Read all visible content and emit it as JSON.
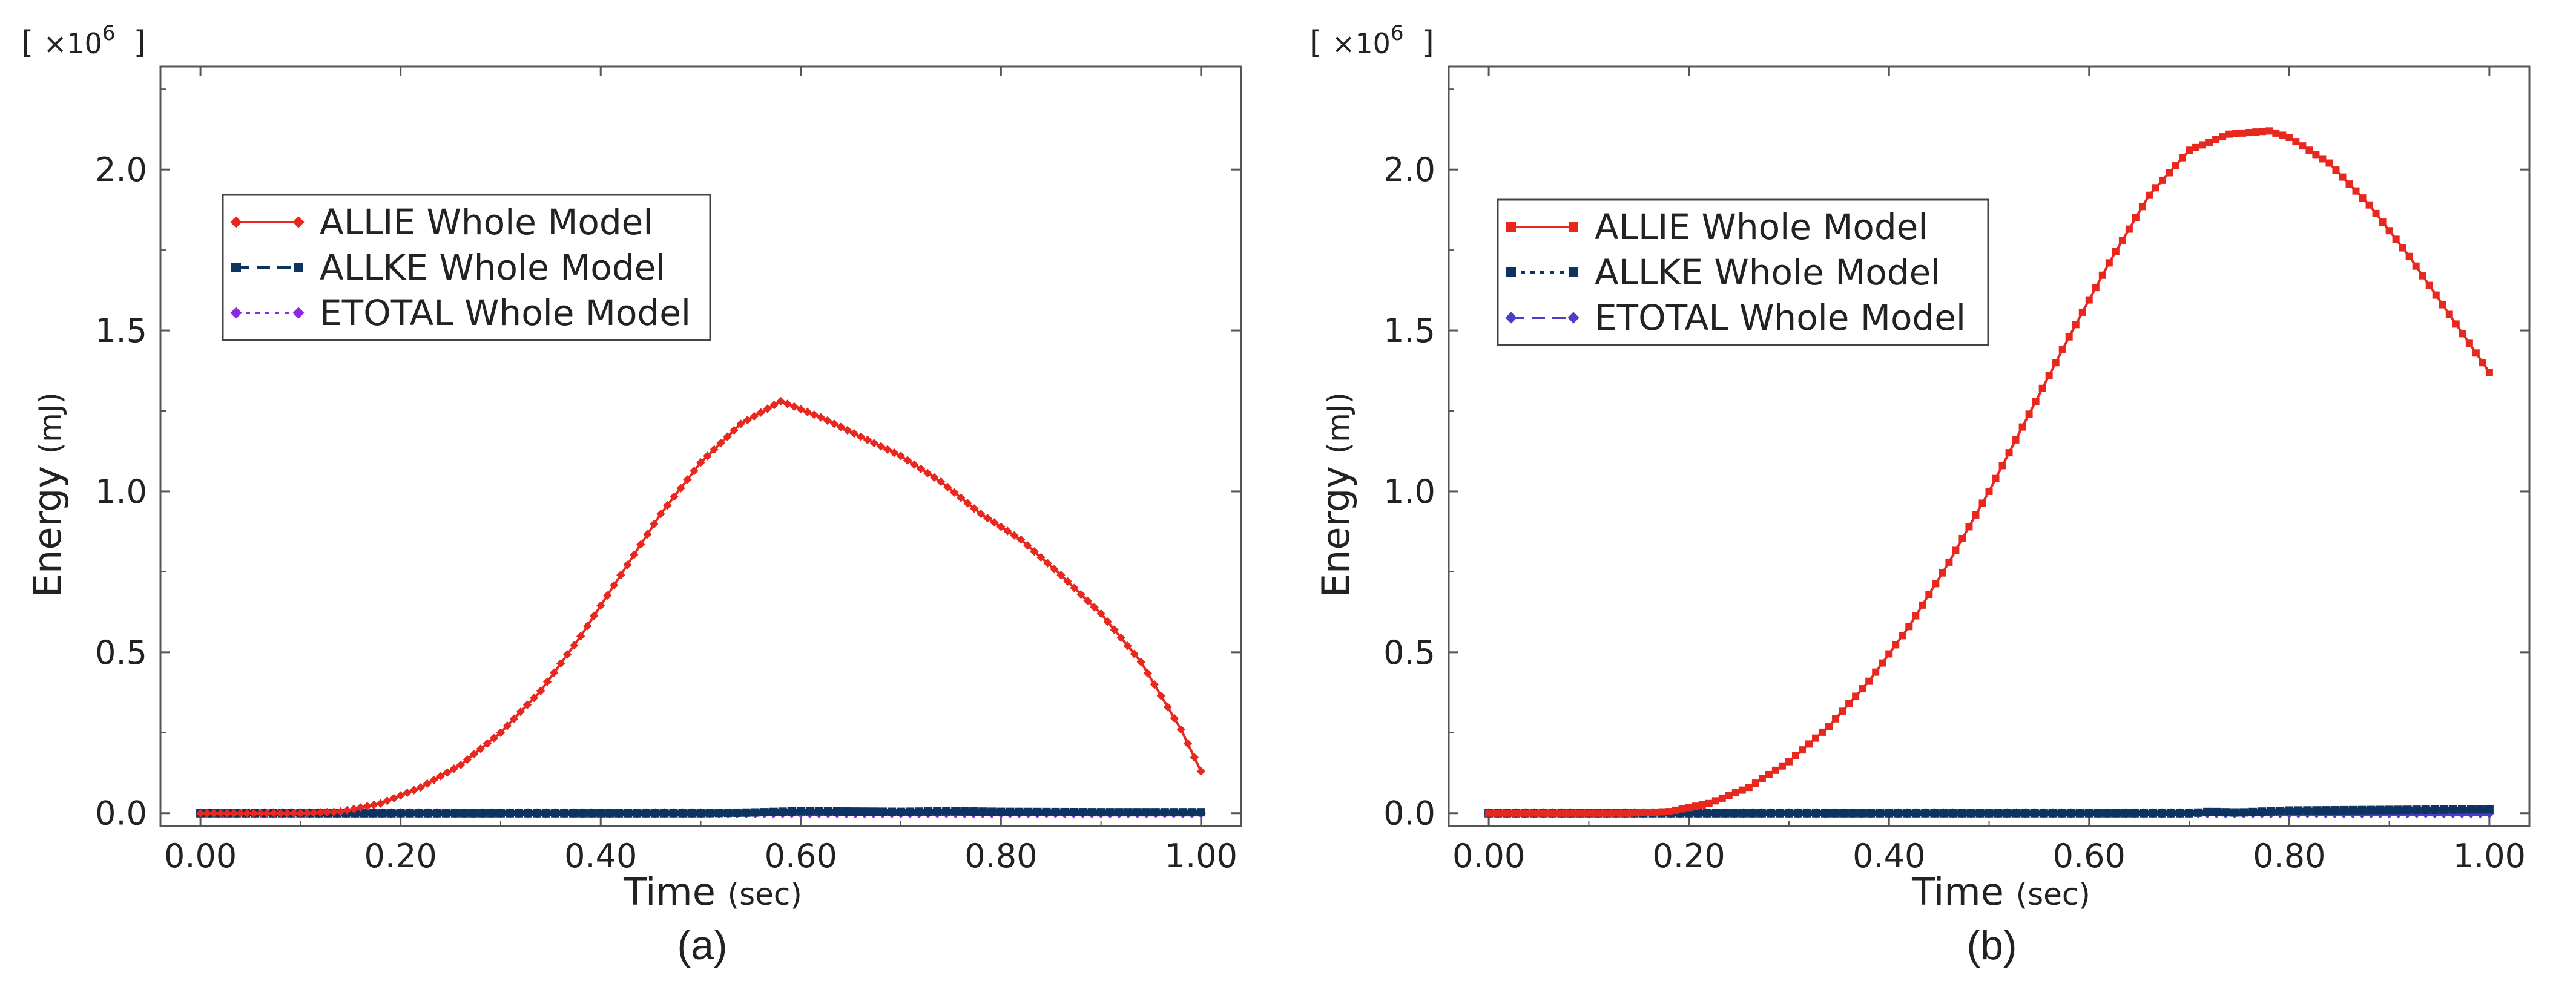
{
  "chart_data": [
    {
      "type": "line",
      "caption": "(a)",
      "xlabel": "Time",
      "xunit": "(sec)",
      "ylabel": "Energy",
      "yunit": "(mJ)",
      "y_multiplier_prefix": "[",
      "y_multiplier": "×10",
      "y_multiplier_exp": "6",
      "y_multiplier_suffix": "]",
      "xlim": [
        -0.04,
        1.04
      ],
      "ylim": [
        -0.04,
        2.32
      ],
      "xticks": [
        0,
        0.2,
        0.4,
        0.6,
        0.8,
        1.0
      ],
      "xtick_labels": [
        "0.00",
        "0.20",
        "0.40",
        "0.60",
        "0.80",
        "1.00"
      ],
      "yticks": [
        0,
        0.5,
        1.0,
        1.5,
        2.0
      ],
      "ytick_labels": [
        "0.0",
        "0.5",
        "1.0",
        "1.5",
        "2.0"
      ],
      "legend_position": "upper-left",
      "series": [
        {
          "name": "ALLIE Whole Model",
          "color": "#e8281e",
          "marker": "diamond",
          "line": "solid",
          "x": [
            0,
            0.1,
            0.14,
            0.18,
            0.22,
            0.26,
            0.3,
            0.34,
            0.38,
            0.42,
            0.46,
            0.5,
            0.54,
            0.58,
            0.62,
            0.66,
            0.7,
            0.74,
            0.78,
            0.82,
            0.86,
            0.9,
            0.94,
            0.98,
            1.0
          ],
          "values": [
            0,
            0,
            0.005,
            0.03,
            0.08,
            0.15,
            0.25,
            0.38,
            0.55,
            0.74,
            0.93,
            1.09,
            1.21,
            1.28,
            1.23,
            1.17,
            1.11,
            1.03,
            0.93,
            0.85,
            0.74,
            0.62,
            0.47,
            0.26,
            0.13
          ]
        },
        {
          "name": "ALLKE Whole Model",
          "color": "#0d3461",
          "marker": "square",
          "line": "dashed",
          "x": [
            0,
            0.1,
            0.2,
            0.3,
            0.4,
            0.5,
            0.55,
            0.6,
            0.65,
            0.7,
            0.75,
            0.8,
            0.9,
            1.0
          ],
          "values": [
            0,
            0,
            0,
            0,
            0,
            0,
            0.002,
            0.006,
            0.005,
            0.004,
            0.006,
            0.004,
            0.003,
            0.003
          ]
        },
        {
          "name": "ETOTAL Whole Model",
          "color": "#8a2be2",
          "marker": "diamond",
          "line": "dotted",
          "x": [
            0,
            0.2,
            0.4,
            0.6,
            0.8,
            1.0
          ],
          "values": [
            0,
            0,
            0,
            0,
            0,
            0
          ]
        }
      ]
    },
    {
      "type": "line",
      "caption": "(b)",
      "xlabel": "Time",
      "xunit": "(sec)",
      "ylabel": "Energy",
      "yunit": "(mJ)",
      "y_multiplier_prefix": "[",
      "y_multiplier": "×10",
      "y_multiplier_exp": "6",
      "y_multiplier_suffix": "]",
      "xlim": [
        -0.04,
        1.04
      ],
      "ylim": [
        -0.04,
        2.32
      ],
      "xticks": [
        0,
        0.2,
        0.4,
        0.6,
        0.8,
        1.0
      ],
      "xtick_labels": [
        "0.00",
        "0.20",
        "0.40",
        "0.60",
        "0.80",
        "1.00"
      ],
      "yticks": [
        0,
        0.5,
        1.0,
        1.5,
        2.0
      ],
      "ytick_labels": [
        "0.0",
        "0.5",
        "1.0",
        "1.5",
        "2.0"
      ],
      "legend_position": "upper-left",
      "series": [
        {
          "name": "ALLIE Whole Model",
          "color": "#e8281e",
          "marker": "square",
          "line": "solid",
          "x": [
            0,
            0.14,
            0.18,
            0.22,
            0.26,
            0.3,
            0.34,
            0.38,
            0.42,
            0.46,
            0.5,
            0.54,
            0.58,
            0.62,
            0.66,
            0.7,
            0.74,
            0.78,
            0.8,
            0.84,
            0.88,
            0.92,
            0.96,
            1.0
          ],
          "values": [
            0,
            0,
            0.005,
            0.03,
            0.08,
            0.16,
            0.27,
            0.41,
            0.58,
            0.78,
            1.0,
            1.24,
            1.48,
            1.71,
            1.92,
            2.06,
            2.11,
            2.12,
            2.1,
            2.02,
            1.89,
            1.73,
            1.55,
            1.37
          ]
        },
        {
          "name": "ALLKE Whole Model",
          "color": "#0d3461",
          "marker": "square",
          "line": "dotted",
          "x": [
            0,
            0.2,
            0.4,
            0.6,
            0.7,
            0.72,
            0.75,
            0.8,
            0.9,
            1.0
          ],
          "values": [
            0,
            0,
            0,
            0,
            0,
            0.004,
            0.002,
            0.008,
            0.01,
            0.012
          ]
        },
        {
          "name": "ETOTAL Whole Model",
          "color": "#4b3fc8",
          "marker": "diamond",
          "line": "dashed",
          "x": [
            0,
            0.2,
            0.4,
            0.6,
            0.8,
            1.0
          ],
          "values": [
            0,
            0,
            0,
            0,
            0,
            0
          ]
        }
      ]
    }
  ]
}
